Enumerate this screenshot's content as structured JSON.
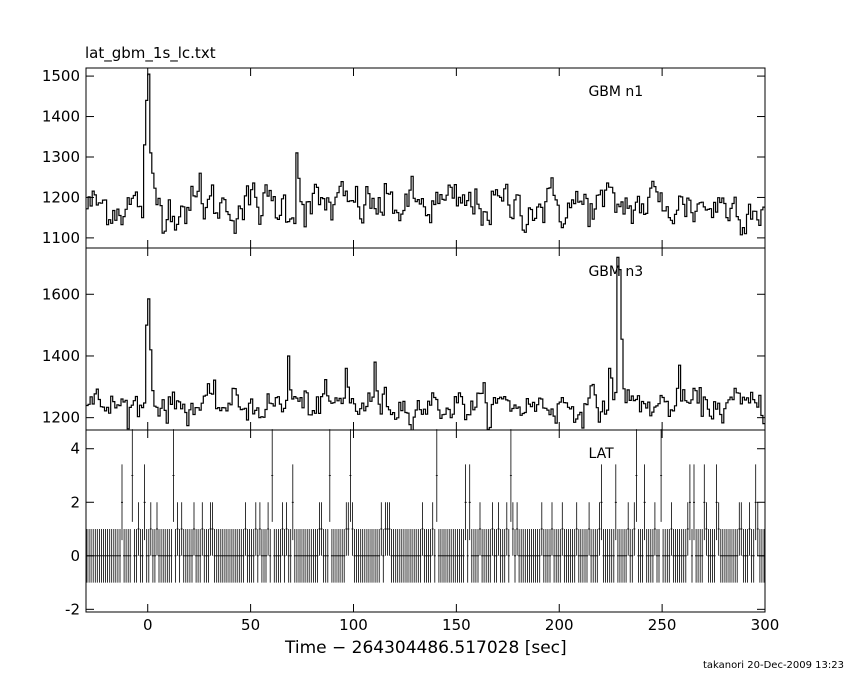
{
  "title": "lat_gbm_1s_lc.txt",
  "xlabel": "Time − 264304486.517028 [sec]",
  "footer": "takanori 20-Dec-2009 13:23",
  "colors": {
    "line": "#000000",
    "background": "#ffffff"
  },
  "chart_data": [
    {
      "type": "line",
      "series": [
        {
          "name": "GBM n1"
        }
      ],
      "x_range": [
        -30,
        300
      ],
      "ylim": [
        1075,
        1520
      ],
      "y_ticks": [
        1100,
        1200,
        1300,
        1400,
        1500
      ],
      "x_ticks": [
        0,
        50,
        100,
        150,
        200,
        250,
        300
      ],
      "baseline": 1180,
      "noise": 26,
      "peaks": [
        [
          0,
          1505
        ],
        [
          -1,
          1440
        ],
        [
          1,
          1310
        ],
        [
          -2,
          1330
        ],
        [
          2,
          1260
        ],
        [
          72,
          1310
        ],
        [
          25,
          1260
        ],
        [
          245,
          1240
        ]
      ],
      "grid": false
    },
    {
      "type": "line",
      "series": [
        {
          "name": "GBM n3"
        }
      ],
      "x_range": [
        -30,
        300
      ],
      "ylim": [
        1160,
        1750
      ],
      "y_ticks": [
        1200,
        1400,
        1600
      ],
      "x_ticks": [
        0,
        50,
        100,
        150,
        200,
        250,
        300
      ],
      "baseline": 1240,
      "noise": 24,
      "peaks": [
        [
          0,
          1585
        ],
        [
          -1,
          1500
        ],
        [
          1,
          1420
        ],
        [
          228,
          1720
        ],
        [
          229,
          1680
        ],
        [
          68,
          1400
        ],
        [
          110,
          1380
        ],
        [
          96,
          1360
        ],
        [
          258,
          1370
        ],
        [
          224,
          1360
        ]
      ],
      "grid": false
    },
    {
      "type": "line",
      "series": [
        {
          "name": "LAT"
        }
      ],
      "x_range": [
        -30,
        300
      ],
      "ylim": [
        -2.1,
        4.7
      ],
      "y_ticks": [
        -2,
        0,
        2,
        4
      ],
      "x_ticks": [
        0,
        50,
        100,
        150,
        200,
        250,
        300
      ],
      "error_band": [
        -1,
        1
      ],
      "grid": false
    }
  ]
}
